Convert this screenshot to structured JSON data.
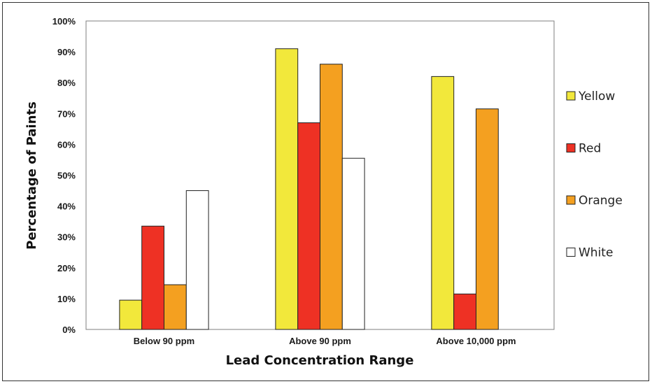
{
  "chart_data": {
    "type": "bar",
    "title": "",
    "xlabel": "Lead Concentration Range",
    "ylabel": "Percentage of Paints",
    "categories": [
      "Below 90 ppm",
      "Above 90 ppm",
      "Above 10,000 ppm"
    ],
    "ylim": [
      0,
      100
    ],
    "y_ticks": [
      "0%",
      "10%",
      "20%",
      "30%",
      "40%",
      "50%",
      "60%",
      "70%",
      "80%",
      "90%",
      "100%"
    ],
    "grid": false,
    "legend_position": "right",
    "series": [
      {
        "name": "Yellow",
        "color": "#f2e83b",
        "values": [
          9.5,
          91,
          82
        ]
      },
      {
        "name": "Red",
        "color": "#ee3124",
        "values": [
          33.5,
          67,
          11.5
        ]
      },
      {
        "name": "Orange",
        "color": "#f4a020",
        "values": [
          14.5,
          86,
          71.5
        ]
      },
      {
        "name": "White",
        "color": "#ffffff",
        "values": [
          45,
          55.5,
          null
        ]
      }
    ]
  }
}
